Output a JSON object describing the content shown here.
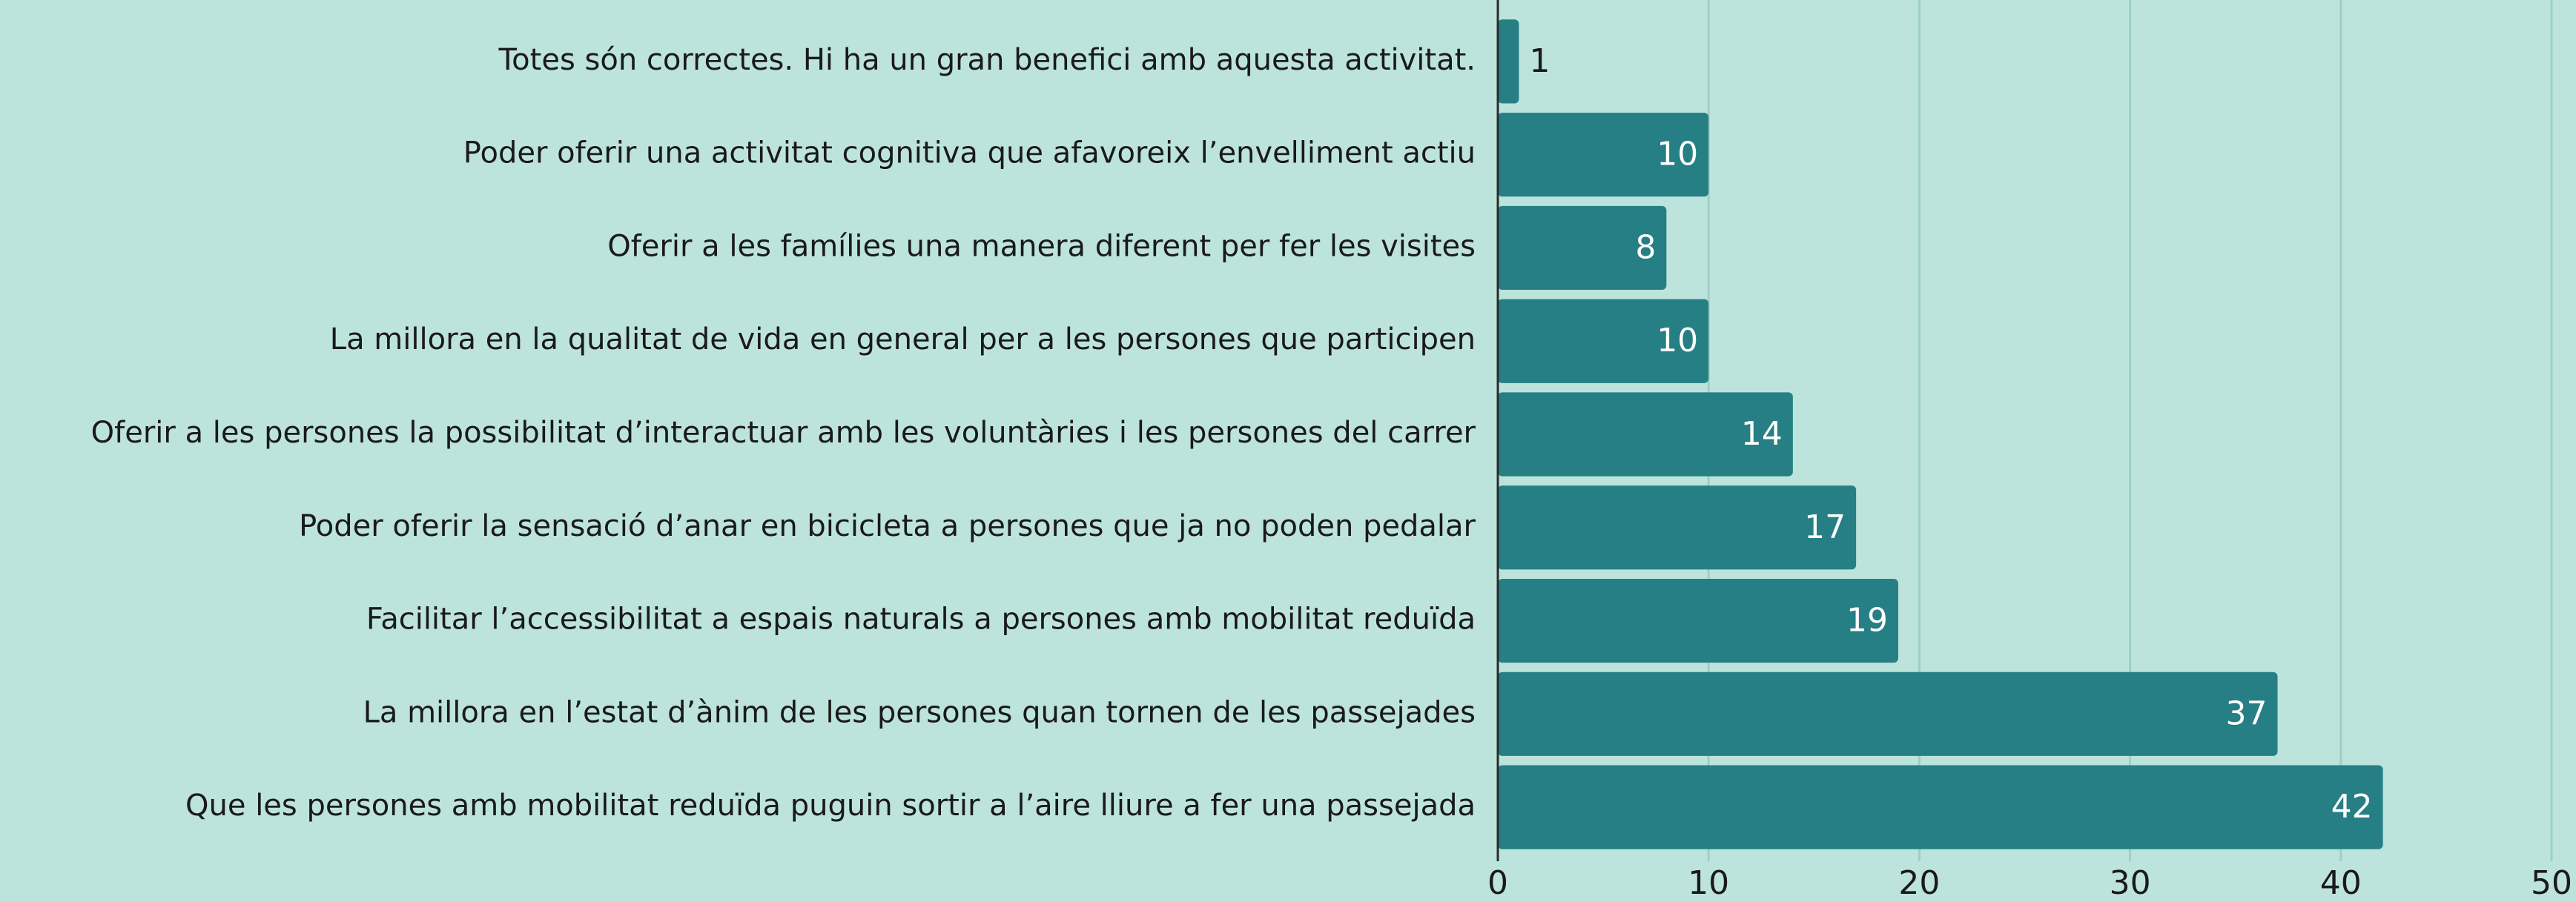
{
  "chart_data": {
    "type": "bar",
    "orientation": "horizontal",
    "categories": [
      "Totes són correctes. Hi ha un gran benefici amb aquesta activitat.",
      "Poder oferir una activitat cognitiva que afavoreix l’envelliment actiu",
      "Oferir a les famílies una manera diferent per fer les visites",
      "La millora en la qualitat de vida en general per a les persones que participen",
      "Oferir a les persones la possibilitat d’interactuar amb les voluntàries i les persones del carrer",
      "Poder oferir la sensació d’anar en bicicleta a persones que ja no poden pedalar",
      "Facilitar l’accessibilitat a espais naturals a persones amb mobilitat reduïda",
      "La millora en l’estat d’ànim de les persones quan tornen de les passejades",
      "Que les persones amb mobilitat reduïda puguin sortir a l’aire lliure a fer una passejada"
    ],
    "values": [
      1,
      10,
      8,
      10,
      14,
      17,
      19,
      37,
      42
    ],
    "color": "#267f84",
    "xlim": [
      0,
      50
    ],
    "xticks": [
      0,
      10,
      20,
      30,
      40,
      50
    ],
    "grid": true
  }
}
